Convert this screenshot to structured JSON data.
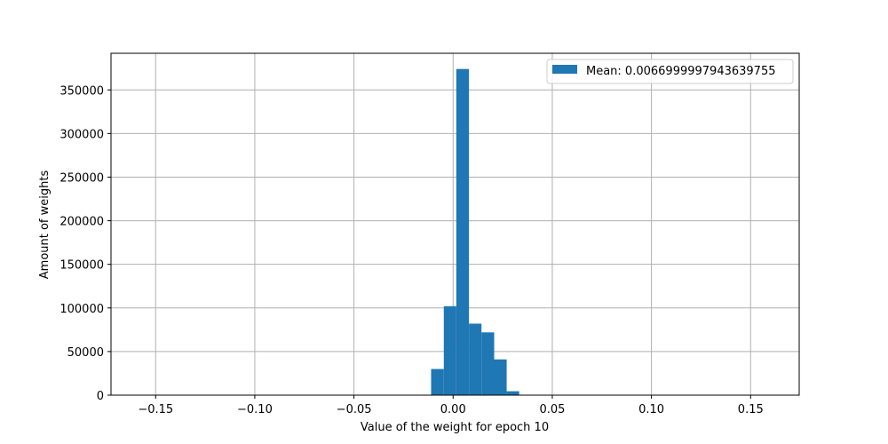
{
  "chart_data": {
    "type": "bar",
    "title": "",
    "xlabel": "Value of the weight for epoch 10",
    "ylabel": "Amount of weights",
    "xlim": [
      -0.1725,
      0.1745
    ],
    "ylim": [
      0,
      392000
    ],
    "grid": true,
    "legend_position": "top-right",
    "legend": [
      "Mean: 0.0066999997943639755"
    ],
    "x_ticks": [
      -0.15,
      -0.1,
      -0.05,
      0.0,
      0.05,
      0.1,
      0.15
    ],
    "x_tick_labels": [
      "−0.15",
      "−0.10",
      "−0.05",
      "0.00",
      "0.05",
      "0.10",
      "0.15"
    ],
    "y_ticks": [
      0,
      50000,
      100000,
      150000,
      200000,
      250000,
      300000,
      350000
    ],
    "y_tick_labels": [
      "0",
      "50000",
      "100000",
      "150000",
      "200000",
      "250000",
      "300000",
      "350000"
    ],
    "bin_edges": [
      -0.0111,
      -0.0047,
      0.0016,
      0.008,
      0.0143,
      0.0207,
      0.027,
      0.0333
    ],
    "counts": [
      30000,
      102000,
      374000,
      82000,
      72000,
      41000,
      4500
    ],
    "colors": {
      "bar": "#1f77b4",
      "grid": "#b0b0b0",
      "axis": "#000000",
      "legend_border": "#cccccc"
    }
  }
}
